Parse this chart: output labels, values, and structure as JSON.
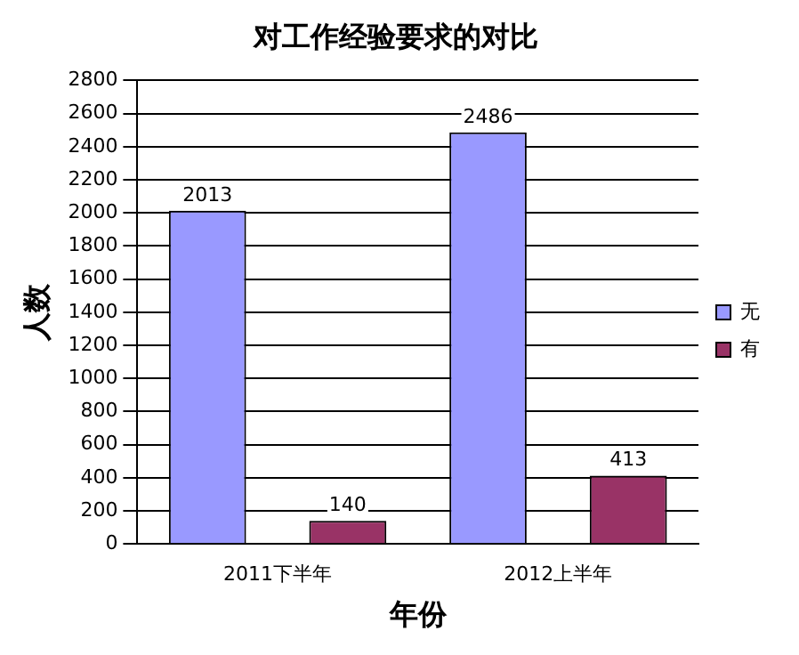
{
  "chart_data": {
    "type": "bar",
    "title": "对工作经验要求的对比",
    "xlabel": "年份",
    "ylabel": "人数",
    "categories": [
      "2011下半年",
      "2012上半年"
    ],
    "series": [
      {
        "name": "无",
        "color": "#9999ff",
        "values": [
          2013,
          2486
        ]
      },
      {
        "name": "有",
        "color": "#993366",
        "values": [
          140,
          413
        ]
      }
    ],
    "ylim": [
      0,
      2800
    ],
    "yticks": [
      0,
      200,
      400,
      600,
      800,
      1000,
      1200,
      1400,
      1600,
      1800,
      2000,
      2200,
      2400,
      2600,
      2800
    ],
    "grid": "y",
    "legend": "right",
    "data_labels": true
  }
}
